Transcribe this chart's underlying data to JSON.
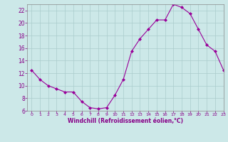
{
  "x": [
    0,
    1,
    2,
    3,
    4,
    5,
    6,
    7,
    8,
    9,
    10,
    11,
    12,
    13,
    14,
    15,
    16,
    17,
    18,
    19,
    20,
    21,
    22,
    23
  ],
  "y": [
    12.5,
    11.0,
    10.0,
    9.5,
    9.0,
    9.0,
    7.5,
    6.5,
    6.3,
    6.5,
    8.5,
    11.0,
    15.5,
    17.5,
    19.0,
    20.5,
    20.5,
    23.0,
    22.5,
    21.5,
    19.0,
    16.5,
    15.5,
    12.5
  ],
  "ylim": [
    6,
    23
  ],
  "xlim": [
    -0.5,
    23
  ],
  "yticks": [
    6,
    8,
    10,
    12,
    14,
    16,
    18,
    20,
    22
  ],
  "xticks": [
    0,
    1,
    2,
    3,
    4,
    5,
    6,
    7,
    8,
    9,
    10,
    11,
    12,
    13,
    14,
    15,
    16,
    17,
    18,
    19,
    20,
    21,
    22,
    23
  ],
  "xlabel": "Windchill (Refroidissement éolien,°C)",
  "line_color": "#990099",
  "marker": "D",
  "marker_size": 2.0,
  "bg_color": "#cce8e8",
  "grid_color": "#aacccc",
  "tick_color": "#880088",
  "label_color": "#880088",
  "spine_color": "#888888"
}
